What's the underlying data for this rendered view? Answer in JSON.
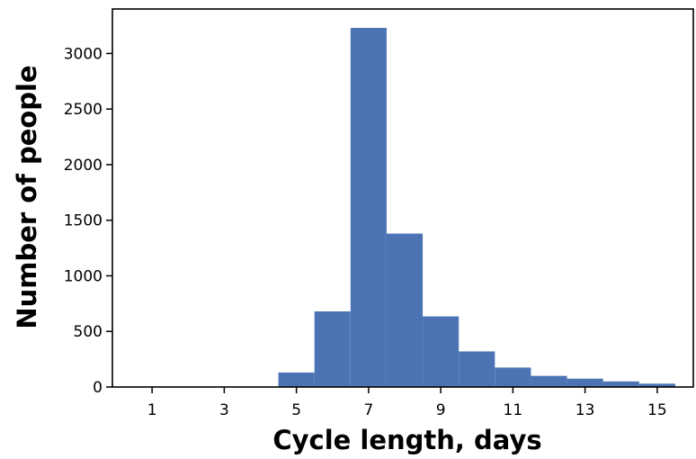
{
  "chart_data": {
    "type": "bar",
    "title": "",
    "xlabel": "Cycle length, days",
    "ylabel": "Number of people",
    "xlim": [
      -0.1,
      16
    ],
    "ylim": [
      0,
      3400
    ],
    "x_ticks": [
      1,
      3,
      5,
      7,
      9,
      11,
      13,
      15
    ],
    "y_ticks": [
      0,
      500,
      1000,
      1500,
      2000,
      2500,
      3000
    ],
    "bar_color": "#4c74b5",
    "bins": [
      {
        "x0": 4.5,
        "x1": 5.5,
        "value": 130
      },
      {
        "x0": 5.5,
        "x1": 6.5,
        "value": 680
      },
      {
        "x0": 6.5,
        "x1": 7.5,
        "value": 3230
      },
      {
        "x0": 7.5,
        "x1": 8.5,
        "value": 1380
      },
      {
        "x0": 8.5,
        "x1": 9.5,
        "value": 635
      },
      {
        "x0": 9.5,
        "x1": 10.5,
        "value": 320
      },
      {
        "x0": 10.5,
        "x1": 11.5,
        "value": 175
      },
      {
        "x0": 11.5,
        "x1": 12.5,
        "value": 100
      },
      {
        "x0": 12.5,
        "x1": 13.5,
        "value": 75
      },
      {
        "x0": 13.5,
        "x1": 14.5,
        "value": 50
      },
      {
        "x0": 14.5,
        "x1": 15.5,
        "value": 30
      }
    ],
    "grid": false,
    "legend": "none"
  }
}
